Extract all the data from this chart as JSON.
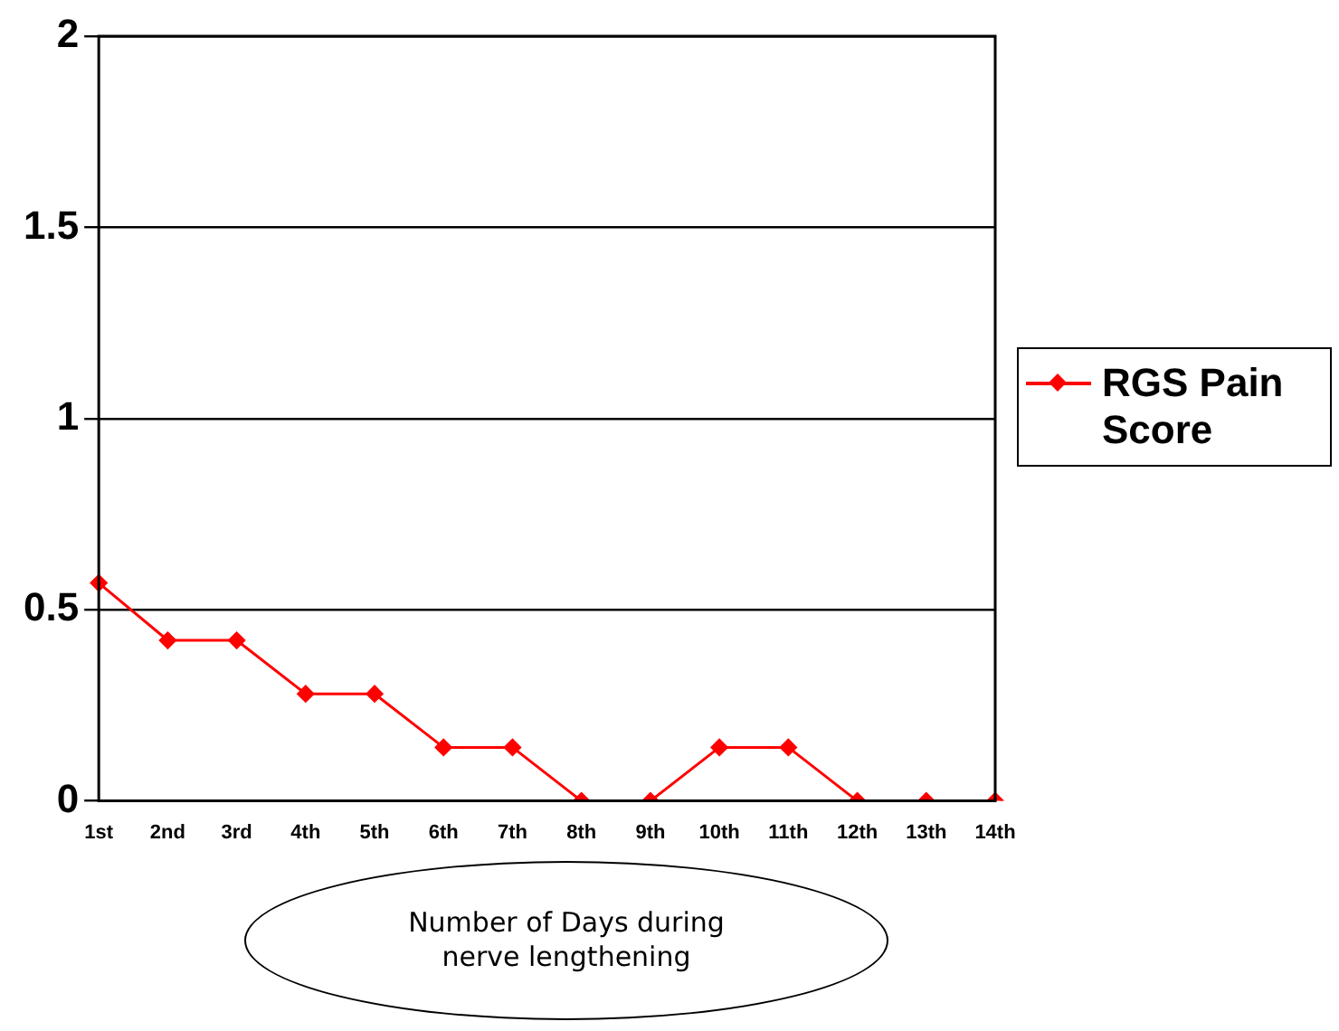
{
  "chart_data": {
    "type": "line",
    "xlabel": "Number of Days during nerve lengthening",
    "categories": [
      "1st",
      "2nd",
      "3rd",
      "4th",
      "5th",
      "6th",
      "7th",
      "8th",
      "9th",
      "10th",
      "11th",
      "12th",
      "13th",
      "14th"
    ],
    "series": [
      {
        "name": "RGS Pain Score",
        "color": "#ff0000",
        "values": [
          0.57,
          0.42,
          0.42,
          0.28,
          0.28,
          0.14,
          0.14,
          0,
          0,
          0.14,
          0.14,
          0,
          0,
          0
        ]
      }
    ],
    "ylim": [
      0,
      2
    ],
    "yticks": [
      0,
      0.5,
      1,
      1.5,
      2
    ],
    "grid": "y",
    "legend": "right",
    "marker": "diamond",
    "line_style": "solid"
  }
}
